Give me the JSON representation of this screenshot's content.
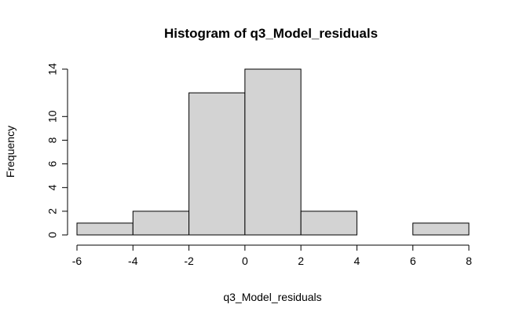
{
  "chart_data": {
    "type": "bar",
    "title": "Histogram of q3_Model_residuals",
    "xlabel": "q3_Model_residuals",
    "ylabel": "Frequency",
    "bins": [
      {
        "start": -6,
        "end": -4,
        "count": 1
      },
      {
        "start": -4,
        "end": -2,
        "count": 2
      },
      {
        "start": -2,
        "end": 0,
        "count": 12
      },
      {
        "start": 0,
        "end": 2,
        "count": 14
      },
      {
        "start": 2,
        "end": 4,
        "count": 2
      },
      {
        "start": 4,
        "end": 6,
        "count": 0
      },
      {
        "start": 6,
        "end": 8,
        "count": 1
      }
    ],
    "x_ticks": [
      "-6",
      "-4",
      "-2",
      "0",
      "2",
      "4",
      "6",
      "8"
    ],
    "y_ticks": [
      "0",
      "2",
      "4",
      "6",
      "8",
      "10",
      "14"
    ],
    "xlim": [
      -6,
      8
    ],
    "ylim": [
      0,
      14
    ],
    "bar_fill": "#d3d3d3",
    "bar_stroke": "#000000",
    "grid": false,
    "legend": "none"
  }
}
